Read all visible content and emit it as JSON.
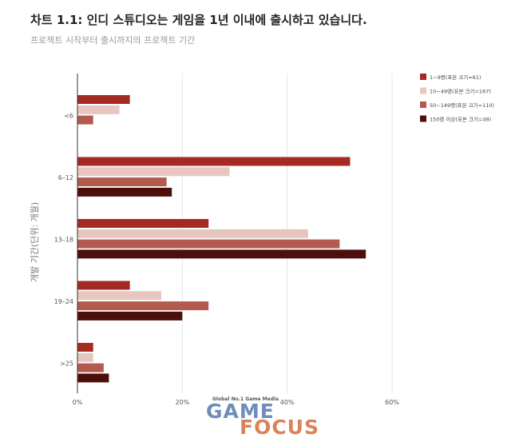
{
  "header": {
    "title": "차트 1.1: 인디 스튜디오는 게임을 1년 이내에 출시하고 있습니다.",
    "subtitle": "프로젝트 시작부터 출시까지의 프로젝트 기간"
  },
  "chart_data": {
    "type": "bar",
    "orientation": "horizontal",
    "categories": [
      "<6",
      "6–12",
      "13–18",
      "19–24",
      ">25"
    ],
    "series": [
      {
        "name": "1~9명(표본 크기=61)",
        "color": "#a52a24",
        "values": [
          10,
          52,
          25,
          10,
          3
        ]
      },
      {
        "name": "10~49명(표본 크기=167)",
        "color": "#e8c6c0",
        "values": [
          8,
          29,
          44,
          16,
          3
        ]
      },
      {
        "name": "50~149명(표본 크기=110)",
        "color": "#b35a4e",
        "values": [
          3,
          17,
          50,
          25,
          5
        ]
      },
      {
        "name": "150명 이상(표본 크기=49)",
        "color": "#4d0f0b",
        "values": [
          0,
          18,
          55,
          20,
          6
        ]
      }
    ],
    "ylabel": "개발 기간(단위: 개월)",
    "xlim": [
      0,
      60
    ],
    "xticks": [
      "0%",
      "20%",
      "40%",
      "60%"
    ],
    "grid": true,
    "legend": "top-right"
  },
  "watermark": {
    "tagline": "Global No.1 Game Media",
    "word1": "GAME",
    "word2": "FOCUS"
  }
}
